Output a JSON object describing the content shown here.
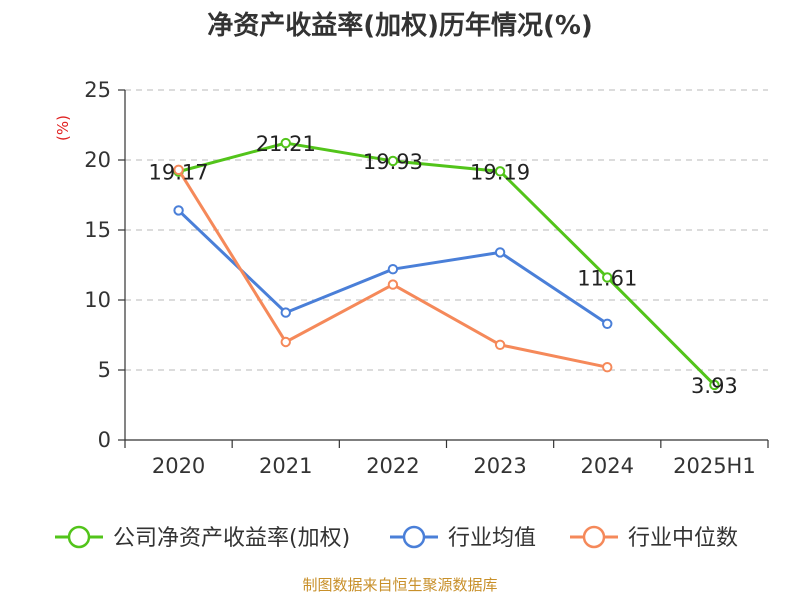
{
  "chart_data": {
    "type": "line",
    "title": "净资产收益率(加权)历年情况(%)",
    "ylabel": "(%)",
    "xlabel": "",
    "categories": [
      "2020",
      "2021",
      "2022",
      "2023",
      "2024",
      "2025H1"
    ],
    "ylim": [
      0,
      25
    ],
    "yticks": [
      0,
      5,
      10,
      15,
      20,
      25
    ],
    "grid": true,
    "legend_position": "bottom",
    "series": [
      {
        "name": "公司净资产收益率(加权)",
        "color": "#52c41a",
        "values": [
          19.17,
          21.21,
          19.93,
          19.19,
          11.61,
          3.93
        ],
        "labels": [
          "19.17",
          "21.21",
          "19.93",
          "19.19",
          "11.61",
          "3.93"
        ]
      },
      {
        "name": "行业均值",
        "color": "#4a7fd8",
        "values": [
          16.4,
          9.1,
          12.2,
          13.4,
          8.3,
          null
        ]
      },
      {
        "name": "行业中位数",
        "color": "#f5895a",
        "values": [
          19.3,
          7.0,
          11.1,
          6.8,
          5.2,
          null
        ]
      }
    ]
  },
  "source": "制图数据来自恒生聚源数据库"
}
